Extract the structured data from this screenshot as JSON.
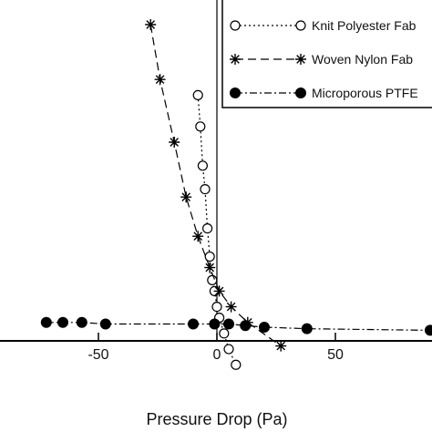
{
  "chart_data": {
    "type": "scatter",
    "title": "",
    "xlabel": "Pressure Drop (Pa)",
    "ylabel": "",
    "xlim": [
      -90,
      90
    ],
    "ylim": [
      -80,
      190
    ],
    "x_ticks": [
      -50,
      0,
      50
    ],
    "x_tick_labels": [
      "-50",
      "0",
      "50"
    ],
    "grid": false,
    "legend_position": "top-right",
    "series": [
      {
        "name": "Knit Polyester Fab",
        "marker": "open-circle",
        "line": "dotted",
        "points": [
          [
            -8,
            130
          ],
          [
            -7,
            110
          ],
          [
            -6,
            85
          ],
          [
            -5,
            70
          ],
          [
            -4,
            45
          ],
          [
            -3,
            27
          ],
          [
            -2,
            12
          ],
          [
            -1,
            5
          ],
          [
            0,
            -5
          ],
          [
            1,
            -12
          ],
          [
            3,
            -22
          ],
          [
            5,
            -32
          ],
          [
            8,
            -42
          ]
        ]
      },
      {
        "name": "Woven Nylon Fab",
        "marker": "star",
        "line": "dashed",
        "points": [
          [
            -28,
            175
          ],
          [
            -24,
            140
          ],
          [
            -18,
            100
          ],
          [
            -13,
            65
          ],
          [
            -8,
            40
          ],
          [
            -3,
            20
          ],
          [
            1,
            5
          ],
          [
            6,
            -5
          ],
          [
            13,
            -15
          ],
          [
            27,
            -30
          ]
        ]
      },
      {
        "name": "Microporous PTFE",
        "marker": "filled-circle",
        "line": "dash-dot",
        "points": [
          [
            -72,
            -15
          ],
          [
            -65,
            -15
          ],
          [
            -57,
            -15
          ],
          [
            -47,
            -16
          ],
          [
            -10,
            -16
          ],
          [
            -1,
            -16
          ],
          [
            5,
            -16
          ],
          [
            12,
            -17
          ],
          [
            20,
            -18
          ],
          [
            38,
            -19
          ],
          [
            90,
            -20
          ]
        ]
      }
    ]
  }
}
